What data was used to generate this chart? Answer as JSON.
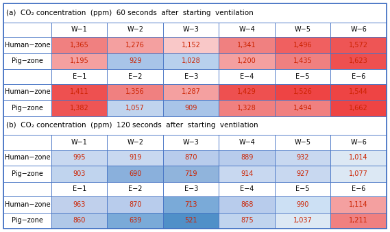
{
  "title_a": "(a)  CO₂ concentration  (ppm)  60 seconds  after  starting  ventilation",
  "title_b": "(b)  CO₂ concentration  (ppm)  120 seconds  after  starting  ventilation",
  "col_headers_W": [
    "W−1",
    "W−2",
    "W−3",
    "W−4",
    "W−5",
    "W−6"
  ],
  "col_headers_E": [
    "E−1",
    "E−2",
    "E−3",
    "E−4",
    "E−5",
    "E−6"
  ],
  "row_labels": [
    "Human−zone",
    "Pig−zone"
  ],
  "section_a_W": {
    "Human-zone": [
      1365,
      1276,
      1152,
      1341,
      1496,
      1572
    ],
    "Pig-zone": [
      1195,
      929,
      1028,
      1200,
      1435,
      1623
    ]
  },
  "section_a_E": {
    "Human-zone": [
      1411,
      1356,
      1287,
      1429,
      1526,
      1544
    ],
    "Pig-zone": [
      1382,
      1057,
      909,
      1328,
      1494,
      1662
    ]
  },
  "section_b_W": {
    "Human-zone": [
      995,
      919,
      870,
      889,
      932,
      1014
    ],
    "Pig-zone": [
      903,
      690,
      719,
      914,
      927,
      1077
    ]
  },
  "section_b_E": {
    "Human-zone": [
      963,
      870,
      713,
      868,
      990,
      1114
    ],
    "Pig-zone": [
      860,
      639,
      521,
      875,
      1037,
      1211
    ]
  },
  "cell_colors_a_W_human": [
    "#f08080",
    "#f4a0a0",
    "#f9c8c8",
    "#f08080",
    "#f06060",
    "#ee5555"
  ],
  "cell_colors_a_W_pig": [
    "#f4a0a0",
    "#a8c4e8",
    "#b8d0ed",
    "#f4a0a0",
    "#f08080",
    "#ee5050"
  ],
  "cell_colors_a_E_human": [
    "#ee5050",
    "#f08080",
    "#f4a0a0",
    "#ee5050",
    "#ee4444",
    "#ee4444"
  ],
  "cell_colors_a_E_pig": [
    "#ee5555",
    "#c0d4ee",
    "#a8c4e8",
    "#f08080",
    "#f08080",
    "#ee4444"
  ],
  "cell_colors_b_W_human": [
    "#c8d8f0",
    "#c8d8f0",
    "#b8ccec",
    "#b8ccec",
    "#c8d8f0",
    "#dce8f4"
  ],
  "cell_colors_b_W_pig": [
    "#c0d4ee",
    "#8ab0dc",
    "#90b4dc",
    "#c8d8f0",
    "#c8d8f0",
    "#dce8f4"
  ],
  "cell_colors_b_E_human": [
    "#c0d0ec",
    "#b8ccec",
    "#7aaad8",
    "#b8ccec",
    "#cce0f4",
    "#f4a0a0"
  ],
  "cell_colors_b_E_pig": [
    "#b0c8e8",
    "#7aaad8",
    "#5090c8",
    "#c0d4ee",
    "#dce8f4",
    "#f08080"
  ],
  "border_color": "#4472c4",
  "text_color": "#cc2200",
  "header_text_color": "#000000",
  "bg_color": "#ffffff",
  "font_size": 7.0,
  "header_font_size": 7.0
}
